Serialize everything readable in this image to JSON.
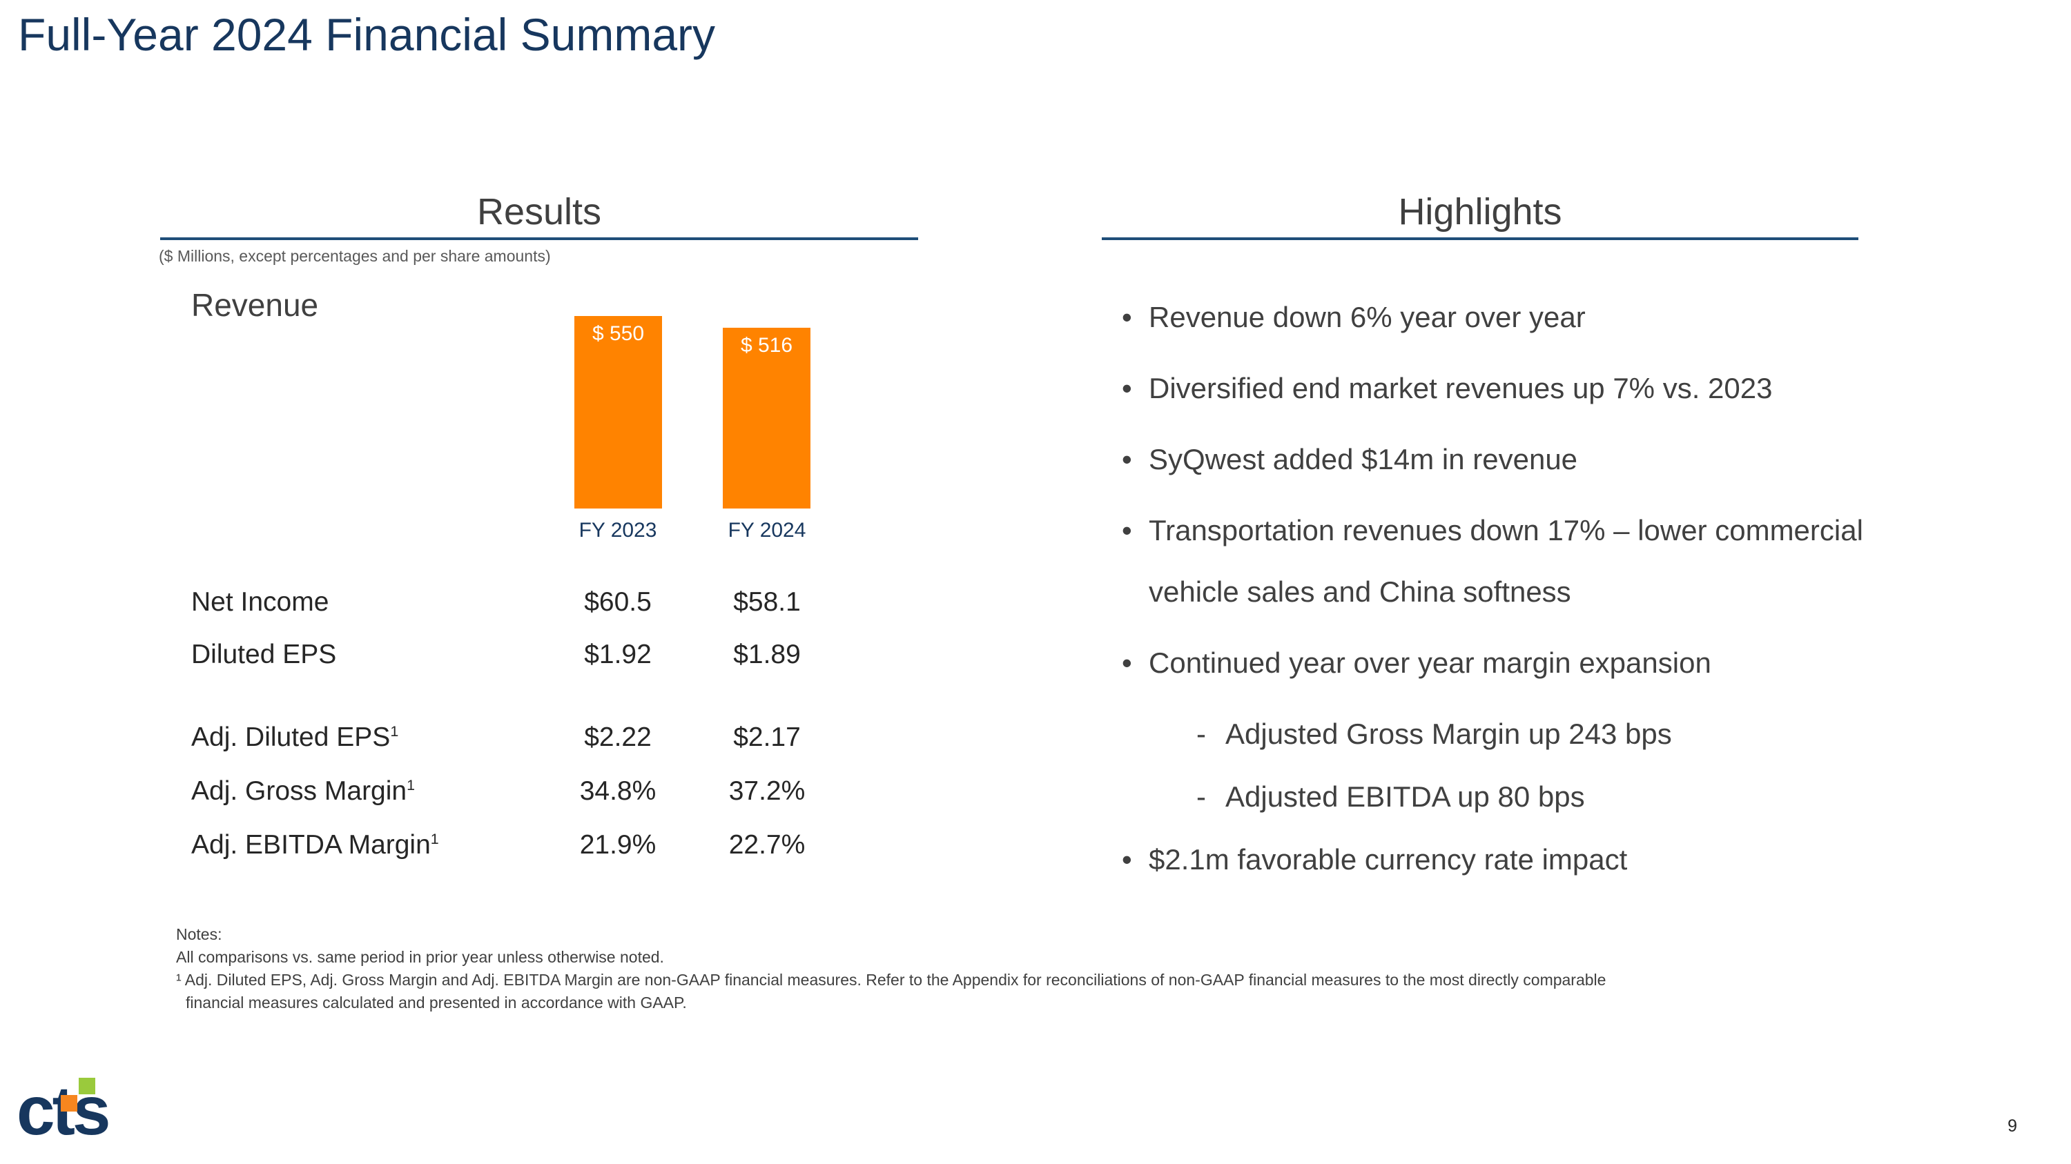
{
  "slide": {
    "title": "Full-Year 2024 Financial Summary",
    "page_number": "9"
  },
  "results": {
    "header": "Results",
    "units_note": "($ Millions, except percentages and per share amounts)",
    "revenue_label": "Revenue",
    "table": {
      "col_headers": [
        "FY 2023",
        "FY 2024"
      ],
      "rows": [
        {
          "label": "Net Income",
          "sup": "",
          "fy2023": "$60.5",
          "fy2024": "$58.1"
        },
        {
          "label": "Diluted EPS",
          "sup": "",
          "fy2023": "$1.92",
          "fy2024": "$1.89"
        },
        {
          "label": "Adj. Diluted EPS",
          "sup": "1",
          "fy2023": "$2.22",
          "fy2024": "$2.17"
        },
        {
          "label": "Adj. Gross Margin",
          "sup": "1",
          "fy2023": "34.8%",
          "fy2024": "37.2%"
        },
        {
          "label": "Adj. EBITDA Margin",
          "sup": "1",
          "fy2023": "21.9%",
          "fy2024": "22.7%"
        }
      ]
    },
    "notes": [
      "Notes:",
      "All comparisons vs. same period in prior year unless otherwise noted.",
      "¹ Adj. Diluted EPS, Adj. Gross Margin and Adj. EBITDA Margin are non-GAAP financial measures. Refer to the Appendix for reconciliations of non-GAAP financial measures to the most directly comparable",
      "financial measures calculated and presented in accordance with GAAP."
    ]
  },
  "highlights": {
    "header": "Highlights",
    "bullet_marker": "•",
    "sub_bullet_marker": "-",
    "bullets": [
      {
        "level": 1,
        "text": "Revenue down 6%  year over year"
      },
      {
        "level": 1,
        "text": "Diversified end market revenues up 7% vs. 2023"
      },
      {
        "level": 1,
        "text": "SyQwest added $14m in revenue"
      },
      {
        "level": 1,
        "text": "Transportation revenues down 17% – lower commercial vehicle sales and China softness"
      },
      {
        "level": 1,
        "text": "Continued year over year margin expansion"
      },
      {
        "level": 2,
        "text": "Adjusted Gross Margin up 243 bps"
      },
      {
        "level": 2,
        "text": "Adjusted EBITDA up 80 bps"
      },
      {
        "level": 1,
        "text": "$2.1m favorable currency rate impact"
      }
    ]
  },
  "chart_data": {
    "type": "bar",
    "title": "Revenue",
    "unit": "$ Millions",
    "categories": [
      "FY 2023",
      "FY 2024"
    ],
    "values": [
      550,
      516
    ],
    "bar_labels": [
      "$ 550",
      "$ 516"
    ],
    "bar_color": "#FF8300",
    "ylim": [
      0,
      550
    ],
    "grid": false,
    "legend": false
  },
  "logo": {
    "text": "cts"
  },
  "colors": {
    "title_navy": "#17375E",
    "accent_blue": "#1F4E79",
    "bar_orange": "#FF8300",
    "header_gray": "#404040",
    "body_text": "#262626",
    "logo_green": "#9ACA3C",
    "logo_orange": "#F6861F"
  }
}
